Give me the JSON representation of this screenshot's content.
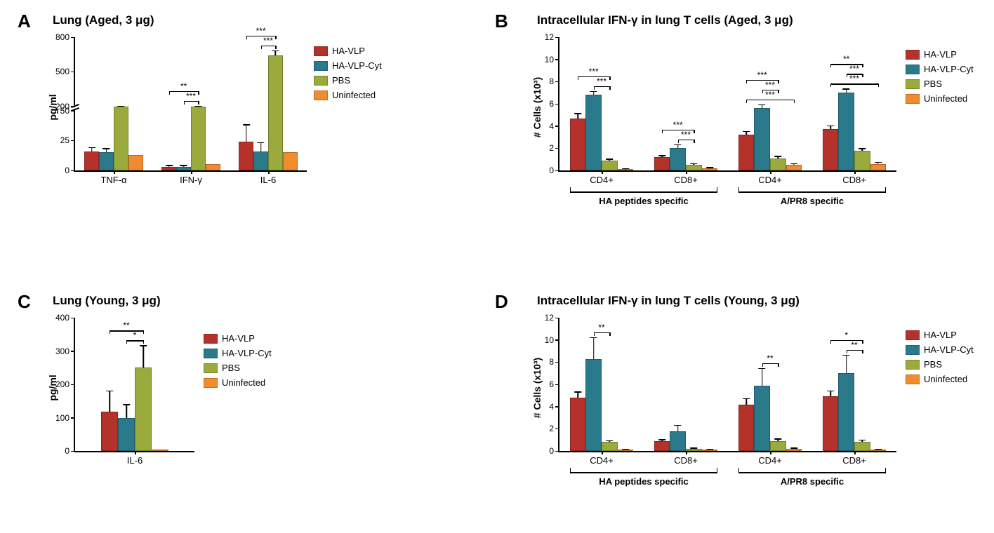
{
  "colors": {
    "ha_vlp": "#b5322b",
    "ha_vlp_cyt": "#2a7a8c",
    "pbs": "#9aaa3c",
    "uninfected": "#f28a2e",
    "axis": "#000000",
    "background": "#ffffff"
  },
  "legend": {
    "items": [
      {
        "label": "HA-VLP",
        "key": "ha_vlp"
      },
      {
        "label": "HA-VLP-Cyt",
        "key": "ha_vlp_cyt"
      },
      {
        "label": "PBS",
        "key": "pbs"
      },
      {
        "label": "Uninfected",
        "key": "uninfected"
      }
    ]
  },
  "panel_a": {
    "label": "A",
    "title": "Lung (Aged, 3 μg)",
    "ylabel": "pg/ml",
    "type": "bar",
    "y_break": {
      "low_max": 50,
      "high_min": 200,
      "high_max": 800
    },
    "y_ticks_low": [
      0,
      25,
      50
    ],
    "y_ticks_high": [
      200,
      500,
      800
    ],
    "groups": [
      "TNF-α",
      "IFN-γ",
      "IL-6"
    ],
    "series": [
      "ha_vlp",
      "ha_vlp_cyt",
      "pbs",
      "uninfected"
    ],
    "values": [
      [
        16,
        15,
        120,
        13
      ],
      [
        3,
        3,
        160,
        5
      ],
      [
        24,
        16,
        640,
        15
      ]
    ],
    "errors": [
      [
        3,
        3,
        10,
        0
      ],
      [
        1,
        1,
        10,
        0
      ],
      [
        14,
        7,
        40,
        0
      ]
    ],
    "significance": [
      {
        "group": 1,
        "from": 0,
        "to": 2,
        "text": "**",
        "level": 0
      },
      {
        "group": 1,
        "from": 1,
        "to": 2,
        "text": "***",
        "level": 1
      },
      {
        "group": 2,
        "from": 0,
        "to": 2,
        "text": "***",
        "level": 0
      },
      {
        "group": 2,
        "from": 1,
        "to": 2,
        "text": "***",
        "level": 1
      }
    ]
  },
  "panel_b": {
    "label": "B",
    "title": "Intracellular IFN-γ in lung T cells (Aged, 3 μg)",
    "ylabel": "# Cells (x10³)",
    "type": "bar",
    "ylim": [
      0,
      12
    ],
    "ytick_step": 2,
    "groups": [
      "CD4+",
      "CD8+",
      "CD4+",
      "CD8+"
    ],
    "supergroups": [
      {
        "label": "HA peptides specific",
        "span": [
          0,
          1
        ]
      },
      {
        "label": "A/PR8 specific",
        "span": [
          2,
          3
        ]
      }
    ],
    "series": [
      "ha_vlp",
      "ha_vlp_cyt",
      "pbs",
      "uninfected"
    ],
    "values": [
      [
        4.7,
        6.8,
        0.9,
        0.1
      ],
      [
        1.2,
        2.0,
        0.5,
        0.2
      ],
      [
        3.2,
        5.6,
        1.1,
        0.5
      ],
      [
        3.7,
        7.0,
        1.8,
        0.6
      ]
    ],
    "errors": [
      [
        0.4,
        0.3,
        0.1,
        0.05
      ],
      [
        0.1,
        0.3,
        0.1,
        0.05
      ],
      [
        0.3,
        0.3,
        0.15,
        0.1
      ],
      [
        0.3,
        0.3,
        0.15,
        0.1
      ]
    ],
    "significance": [
      {
        "group": 0,
        "from": 0,
        "to": 2,
        "text": "***",
        "level": 0
      },
      {
        "group": 0,
        "from": 1,
        "to": 2,
        "text": "***",
        "level": 1
      },
      {
        "group": 1,
        "from": 0,
        "to": 2,
        "text": "***",
        "level": 0
      },
      {
        "group": 1,
        "from": 1,
        "to": 2,
        "text": "***",
        "level": 1
      },
      {
        "group": 2,
        "from": 0,
        "to": 2,
        "text": "***",
        "level": 0
      },
      {
        "group": 2,
        "from": 1,
        "to": 2,
        "text": "***",
        "level": 1
      },
      {
        "group": 2,
        "from": 0,
        "to": 3,
        "text": "***",
        "level": 2
      },
      {
        "group": 3,
        "from": 0,
        "to": 2,
        "text": "**",
        "level": 0
      },
      {
        "group": 3,
        "from": 1,
        "to": 2,
        "text": "***",
        "level": 1
      },
      {
        "group": 3,
        "from": 0,
        "to": 3,
        "text": "***",
        "level": 2
      }
    ]
  },
  "panel_c": {
    "label": "C",
    "title": "Lung (Young, 3 μg)",
    "ylabel": "pg/ml",
    "type": "bar",
    "ylim": [
      0,
      400
    ],
    "ytick_step": 100,
    "groups": [
      "IL-6"
    ],
    "series": [
      "ha_vlp",
      "ha_vlp_cyt",
      "pbs",
      "uninfected"
    ],
    "values": [
      [
        118,
        100,
        250,
        5
      ]
    ],
    "errors": [
      [
        62,
        38,
        65,
        0
      ]
    ],
    "significance": [
      {
        "group": 0,
        "from": 0,
        "to": 2,
        "text": "**",
        "level": 0
      },
      {
        "group": 0,
        "from": 1,
        "to": 2,
        "text": "*",
        "level": 1
      }
    ]
  },
  "panel_d": {
    "label": "D",
    "title": "Intracellular IFN-γ in lung T cells (Young, 3 μg)",
    "ylabel": "# Cells (x10³)",
    "type": "bar",
    "ylim": [
      0,
      12
    ],
    "ytick_step": 2,
    "groups": [
      "CD4+",
      "CD8+",
      "CD4+",
      "CD8+"
    ],
    "supergroups": [
      {
        "label": "HA peptides specific",
        "span": [
          0,
          1
        ]
      },
      {
        "label": "A/PR8 specific",
        "span": [
          2,
          3
        ]
      }
    ],
    "series": [
      "ha_vlp",
      "ha_vlp_cyt",
      "pbs",
      "uninfected"
    ],
    "values": [
      [
        4.8,
        8.3,
        0.8,
        0.1
      ],
      [
        0.9,
        1.8,
        0.2,
        0.1
      ],
      [
        4.2,
        5.9,
        0.9,
        0.2
      ],
      [
        4.9,
        7.0,
        0.8,
        0.1
      ]
    ],
    "errors": [
      [
        0.5,
        1.9,
        0.1,
        0.05
      ],
      [
        0.1,
        0.5,
        0.05,
        0.05
      ],
      [
        0.5,
        1.5,
        0.15,
        0.05
      ],
      [
        0.5,
        1.6,
        0.15,
        0.05
      ]
    ],
    "significance": [
      {
        "group": 0,
        "from": 1,
        "to": 2,
        "text": "**",
        "level": 0
      },
      {
        "group": 2,
        "from": 1,
        "to": 2,
        "text": "**",
        "level": 0
      },
      {
        "group": 3,
        "from": 0,
        "to": 2,
        "text": "*",
        "level": 0
      },
      {
        "group": 3,
        "from": 1,
        "to": 2,
        "text": "**",
        "level": 1
      }
    ]
  },
  "typography": {
    "title_fontsize": 17,
    "label_fontsize": 14,
    "tick_fontsize": 12,
    "panel_label_fontsize": 26,
    "panel_label_weight": "bold"
  }
}
